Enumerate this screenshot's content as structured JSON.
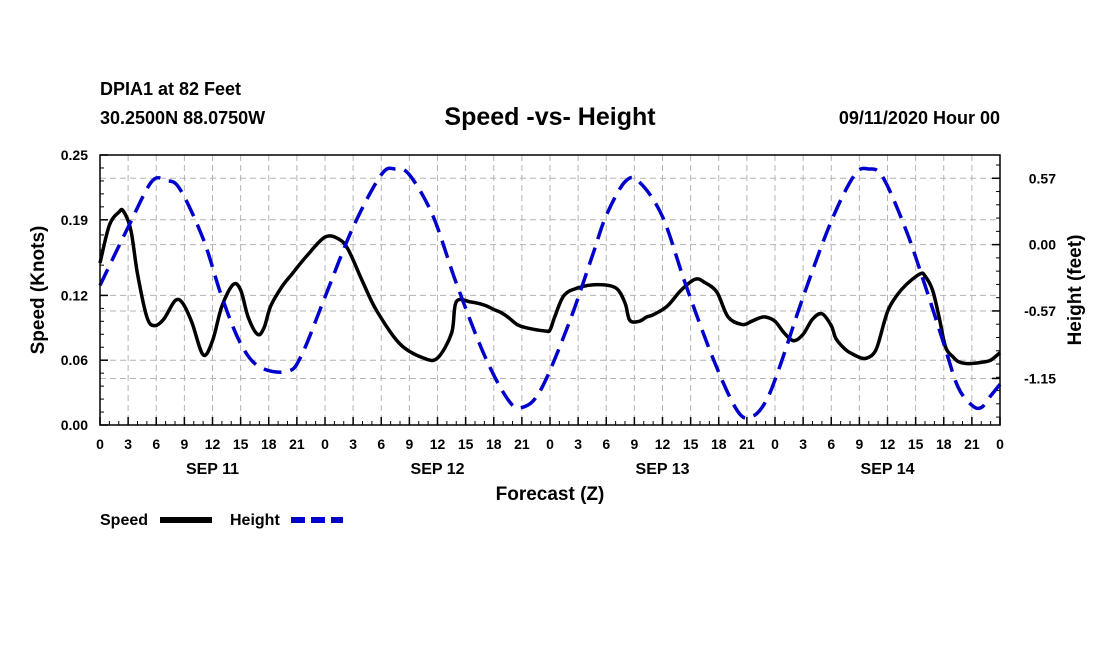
{
  "header": {
    "station": "DPIA1 at 82 Feet",
    "coords": "30.2500N 88.0750W",
    "title": "Speed -vs- Height",
    "run": "09/11/2020 Hour 00"
  },
  "legend": {
    "speed_label": "Speed",
    "height_label": "Height"
  },
  "colors": {
    "speed": "#000000",
    "height": "#0000cc",
    "grid": "#b4b4b4"
  },
  "chart_data": {
    "type": "line",
    "title": "Speed -vs- Height",
    "xlabel": "Forecast (Z)",
    "ylabel": "Speed (Knots)",
    "y2label": "Height (feet)",
    "xlim": [
      0,
      96
    ],
    "ylim": [
      0,
      0.25
    ],
    "y2lim": [
      -1.55,
      0.77
    ],
    "x_ticks": [
      0,
      3,
      6,
      9,
      12,
      15,
      18,
      21,
      24,
      27,
      30,
      33,
      36,
      39,
      42,
      45,
      48,
      51,
      54,
      57,
      60,
      63,
      66,
      69,
      72,
      75,
      78,
      81,
      84,
      87,
      90,
      93,
      96
    ],
    "x_tick_labels": [
      "0",
      "3",
      "6",
      "9",
      "12",
      "15",
      "18",
      "21",
      "0",
      "3",
      "6",
      "9",
      "12",
      "15",
      "18",
      "21",
      "0",
      "3",
      "6",
      "9",
      "12",
      "15",
      "18",
      "21",
      "0",
      "3",
      "6",
      "9",
      "12",
      "15",
      "18",
      "21",
      "0"
    ],
    "day_labels": [
      {
        "x": 12,
        "label": "SEP 11"
      },
      {
        "x": 36,
        "label": "SEP 12"
      },
      {
        "x": 60,
        "label": "SEP 13"
      },
      {
        "x": 84,
        "label": "SEP 14"
      }
    ],
    "y_ticks": [
      0.0,
      0.06,
      0.12,
      0.19,
      0.25
    ],
    "y_tick_labels": [
      "0.00",
      "0.06",
      "0.12",
      "0.19",
      "0.25"
    ],
    "y2_ticks": [
      0.57,
      0.0,
      -0.57,
      -1.15
    ],
    "y2_tick_labels": [
      "0.57",
      "0.00",
      "-0.57",
      "-1.15"
    ],
    "grid": true,
    "series": [
      {
        "name": "Speed",
        "axis": "left",
        "style": "solid",
        "x": [
          0,
          1,
          2,
          2.5,
          3.3,
          4,
          5,
          5.8,
          6.8,
          8,
          8.8,
          9.8,
          11,
          12,
          13,
          14.2,
          15,
          15.8,
          16.8,
          17.5,
          18.2,
          19.4,
          20.5,
          22,
          24,
          25.5,
          26.5,
          28,
          29.5,
          32,
          34.5,
          36,
          37.5,
          38,
          39.5,
          41,
          42,
          42.8,
          43.5,
          44.5,
          45.5,
          47.5,
          48,
          48.5,
          49.5,
          51,
          53,
          55,
          56,
          56.5,
          57.5,
          58.3,
          59,
          60.5,
          62,
          63.5,
          64.5,
          65.8,
          67,
          68.5,
          69.5,
          70.3,
          71,
          72,
          73,
          74,
          75,
          76,
          77,
          78,
          78.5,
          79.5,
          80.2,
          81.2,
          81.8,
          82.5,
          83,
          84,
          85,
          86,
          87.5,
          88,
          88.8,
          89.5,
          90.2,
          91,
          91.5,
          92.3,
          93,
          94,
          95,
          96
        ],
        "values": [
          0.15,
          0.185,
          0.197,
          0.198,
          0.18,
          0.14,
          0.1,
          0.092,
          0.098,
          0.115,
          0.113,
          0.095,
          0.065,
          0.078,
          0.11,
          0.13,
          0.125,
          0.1,
          0.084,
          0.09,
          0.11,
          0.128,
          0.14,
          0.156,
          0.174,
          0.172,
          0.162,
          0.133,
          0.106,
          0.075,
          0.062,
          0.062,
          0.085,
          0.114,
          0.114,
          0.111,
          0.107,
          0.104,
          0.1,
          0.093,
          0.09,
          0.087,
          0.088,
          0.1,
          0.12,
          0.127,
          0.13,
          0.127,
          0.113,
          0.097,
          0.096,
          0.1,
          0.102,
          0.11,
          0.125,
          0.135,
          0.132,
          0.123,
          0.1,
          0.093,
          0.096,
          0.099,
          0.1,
          0.096,
          0.085,
          0.078,
          0.084,
          0.098,
          0.103,
          0.092,
          0.08,
          0.07,
          0.066,
          0.062,
          0.062,
          0.066,
          0.075,
          0.105,
          0.12,
          0.13,
          0.14,
          0.138,
          0.125,
          0.1,
          0.072,
          0.063,
          0.059,
          0.057,
          0.057,
          0.058,
          0.06,
          0.067
        ]
      },
      {
        "name": "Height",
        "axis": "right",
        "style": "dashed",
        "x": [
          0,
          3,
          5.5,
          7,
          8.5,
          11,
          13,
          15,
          17,
          20,
          21.5,
          24,
          27,
          30,
          31.5,
          33,
          35.5,
          38,
          41,
          43.5,
          45,
          47,
          50,
          52.5,
          54,
          56,
          57.5,
          60,
          62.5,
          65.5,
          68,
          69.5,
          71,
          72.5,
          75,
          78,
          80.5,
          82,
          83.5,
          86,
          88,
          90,
          91.5,
          93,
          94,
          95,
          96
        ],
        "values": [
          -0.35,
          0.15,
          0.54,
          0.55,
          0.48,
          0.05,
          -0.45,
          -0.85,
          -1.05,
          -1.09,
          -0.95,
          -0.45,
          0.15,
          0.6,
          0.65,
          0.6,
          0.25,
          -0.33,
          -0.95,
          -1.33,
          -1.4,
          -1.25,
          -0.68,
          -0.1,
          0.25,
          0.54,
          0.54,
          0.24,
          -0.35,
          -1.0,
          -1.43,
          -1.48,
          -1.35,
          -1.05,
          -0.45,
          0.2,
          0.6,
          0.65,
          0.58,
          0.12,
          -0.35,
          -0.85,
          -1.22,
          -1.38,
          -1.4,
          -1.3,
          -1.2
        ]
      }
    ]
  }
}
